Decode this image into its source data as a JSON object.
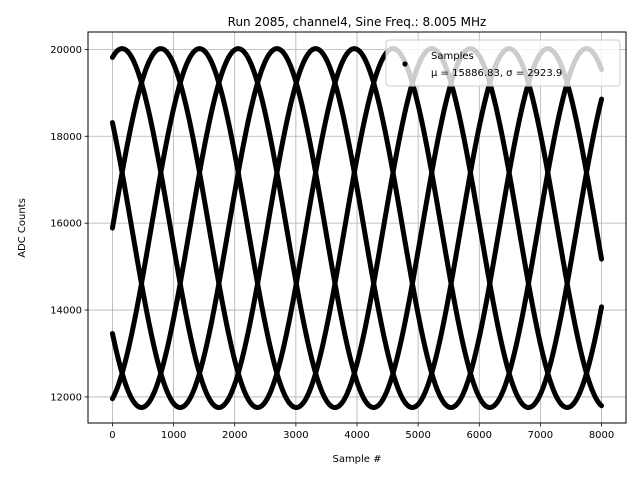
{
  "chart_data": {
    "type": "scatter",
    "title": "Run 2085, channel4, Sine Freq.: 8.005 MHz",
    "xlabel": "Sample #",
    "ylabel": "ADC Counts",
    "xlim": [
      -400,
      8400
    ],
    "ylim": [
      11400,
      20400
    ],
    "xticks": [
      0,
      1000,
      2000,
      3000,
      4000,
      5000,
      6000,
      7000,
      8000
    ],
    "yticks": [
      12000,
      14000,
      16000,
      18000,
      20000
    ],
    "xtick_labels": [
      "0",
      "1000",
      "2000",
      "3000",
      "4000",
      "5000",
      "6000",
      "7000",
      "8000"
    ],
    "ytick_labels": [
      "12000",
      "14000",
      "16000",
      "18000",
      "20000"
    ],
    "grid": true,
    "legend": {
      "placement": "top-right",
      "series_name": "Samples",
      "stats_label": "μ = 15886.83, σ = 2923.9"
    },
    "series": [
      {
        "name": "Samples",
        "color": "#000000",
        "waveform": {
          "type": "sine",
          "offset": 15886.83,
          "amplitude": 4130,
          "period_samples": 3165,
          "phases_deg": [
            72,
            0,
            288,
            216,
            144
          ]
        },
        "x_range": [
          0,
          8000
        ],
        "y_min": 11756,
        "y_max": 20016
      }
    ]
  }
}
